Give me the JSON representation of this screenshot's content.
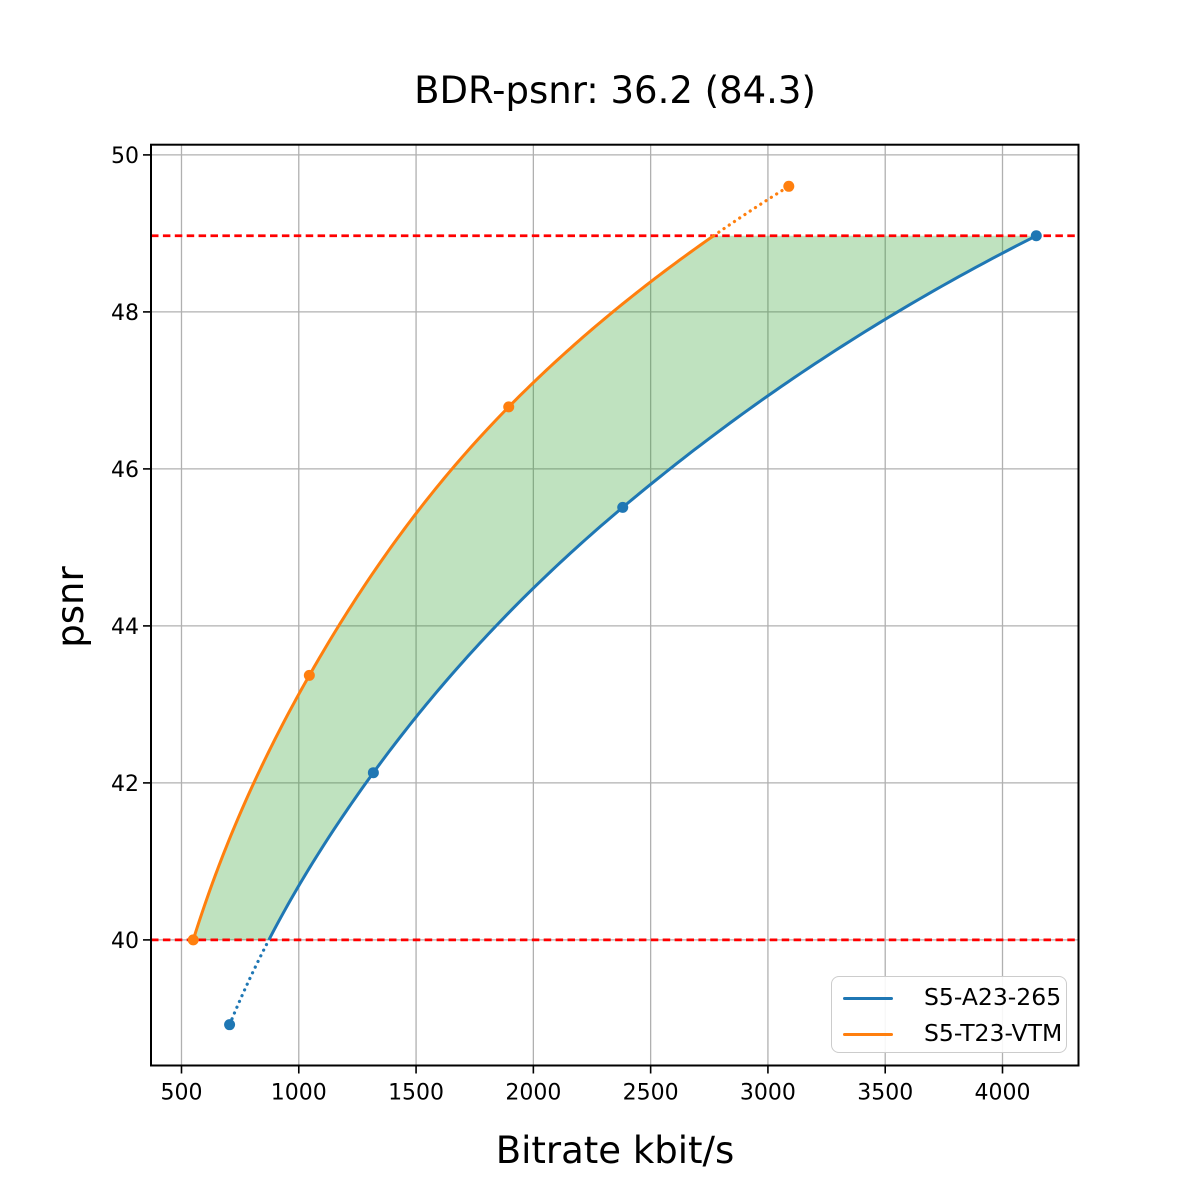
{
  "chart_data": {
    "type": "line",
    "title": "BDR-psnr: 36.2 (84.3)",
    "xlabel": "Bitrate kbit/s",
    "ylabel": "psnr",
    "xlim": [
      370,
      4324
    ],
    "ylim": [
      38.4,
      50.13
    ],
    "xticks": [
      500,
      1000,
      1500,
      2000,
      2500,
      3000,
      3500,
      4000
    ],
    "yticks": [
      40,
      42,
      44,
      46,
      48,
      50
    ],
    "grid": true,
    "grid_color": "#b0b0b0",
    "legend_position": "lower right",
    "series": [
      {
        "name": "S5-A23-265",
        "color": "#1f77b4",
        "points": [
          [
            705,
            38.92
          ],
          [
            1318,
            42.13
          ],
          [
            2381,
            45.51
          ],
          [
            4144,
            48.97
          ]
        ]
      },
      {
        "name": "S5-T23-VTM",
        "color": "#ff7f0e",
        "points": [
          [
            550,
            40.0
          ],
          [
            1045,
            43.37
          ],
          [
            1895,
            46.79
          ],
          [
            3089,
            49.6
          ]
        ]
      }
    ],
    "overlap_lines": {
      "color": "#ff0000",
      "style": "dashed",
      "low": 40.0,
      "high": 48.97
    },
    "shade_between": {
      "color": "#2ca02c",
      "alpha": 0.3
    },
    "interpolation": "monotone-cubic-on-log-bitrate",
    "out_of_overlap_linestyle": "dotted"
  }
}
